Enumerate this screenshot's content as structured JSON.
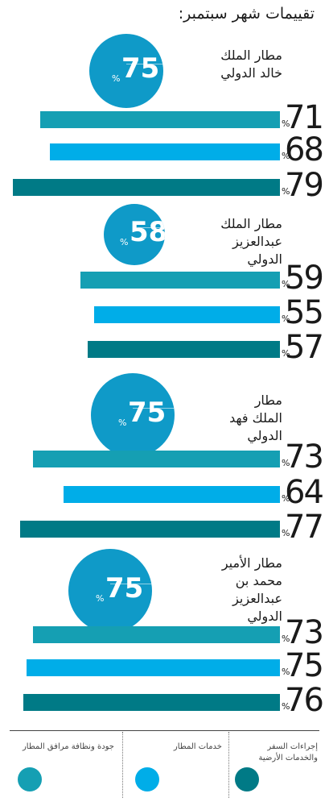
{
  "title": "تقييمات شهر سبتمبر:",
  "colors": {
    "circle": "#0f9ac8",
    "quality": "#159fb3",
    "services": "#00ade8",
    "procedures": "#007a86"
  },
  "legend": [
    {
      "key": "quality",
      "label": "جودة ونظافة مرافق المطار"
    },
    {
      "key": "services",
      "label": "خدمات المطار"
    },
    {
      "key": "procedures",
      "label": "إجراءات السفر والخدمات الأرضية"
    }
  ],
  "airports": [
    {
      "name_lines": [
        "مطار الملك",
        "خالد الدولي"
      ],
      "overall": "75",
      "pct": "%",
      "bars": [
        {
          "key": "quality",
          "value": "71"
        },
        {
          "key": "services",
          "value": "68"
        },
        {
          "key": "procedures",
          "value": "79"
        }
      ]
    },
    {
      "name_lines": [
        "مطار الملك",
        "عبدالعزيز",
        "الدولي"
      ],
      "overall": "58",
      "pct": "%",
      "bars": [
        {
          "key": "quality",
          "value": "59"
        },
        {
          "key": "services",
          "value": "55"
        },
        {
          "key": "procedures",
          "value": "57"
        }
      ]
    },
    {
      "name_lines": [
        "مطار",
        "الملك فهد",
        "الدولي"
      ],
      "overall": "75",
      "pct": "%",
      "bars": [
        {
          "key": "quality",
          "value": "73"
        },
        {
          "key": "services",
          "value": "64"
        },
        {
          "key": "procedures",
          "value": "77"
        }
      ]
    },
    {
      "name_lines": [
        "مطار الأمير",
        "محمد بن",
        "عبدالعزيز",
        "الدولي"
      ],
      "overall": "75",
      "pct": "%",
      "bars": [
        {
          "key": "quality",
          "value": "73"
        },
        {
          "key": "services",
          "value": "75"
        },
        {
          "key": "procedures",
          "value": "76"
        }
      ]
    }
  ],
  "chart_data": {
    "type": "bar",
    "title": "تقييمات شهر سبتمبر:",
    "categories": [
      "مطار الملك خالد الدولي",
      "مطار الملك عبدالعزيز الدولي",
      "مطار الملك فهد الدولي",
      "مطار الأمير محمد بن عبدالعزيز الدولي"
    ],
    "series": [
      {
        "name": "جودة ونظافة مرافق المطار",
        "values": [
          71,
          59,
          73,
          73
        ]
      },
      {
        "name": "خدمات المطار",
        "values": [
          68,
          55,
          64,
          75
        ]
      },
      {
        "name": "إجراءات السفر والخدمات الأرضية",
        "values": [
          79,
          57,
          77,
          76
        ]
      }
    ],
    "overall": [
      75,
      58,
      75,
      75
    ],
    "unit": "%",
    "legend": "bottom"
  }
}
